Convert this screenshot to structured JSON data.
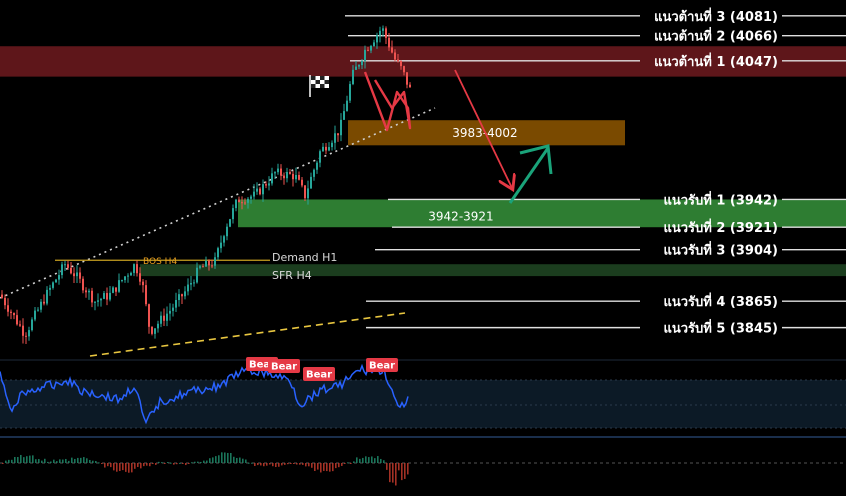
{
  "chart_data": {
    "type": "candlestick",
    "ylim": [
      3822,
      4093
    ],
    "resistance_levels": [
      {
        "label": "แนวต้านที่ 3 (4081)",
        "value": 4081
      },
      {
        "label": "แนวต้านที่ 2 (4066)",
        "value": 4066
      },
      {
        "label": "แนวต้านที่ 1 (4047)",
        "value": 4047
      }
    ],
    "support_levels": [
      {
        "label": "แนวรับที่ 1 (3942)",
        "value": 3942
      },
      {
        "label": "แนวรับที่ 2 (3921)",
        "value": 3921
      },
      {
        "label": "แนวรับที่ 3 (3904)",
        "value": 3904
      },
      {
        "label": "แนวรับที่ 4 (3865)",
        "value": 3865
      },
      {
        "label": "แนวรับที่ 5 (3845)",
        "value": 3845
      }
    ],
    "zones": [
      {
        "label": "3983-4002",
        "low": 3983,
        "high": 4002,
        "color": "#7a4a00"
      },
      {
        "label": "3942-3921",
        "low": 3921,
        "high": 3942,
        "color": "#2e7d32"
      },
      {
        "label": "",
        "low": 4035,
        "high": 4058,
        "color": "#6e1a1f"
      },
      {
        "label": "",
        "low": 3884,
        "high": 3893,
        "color": "#1b3d1e"
      }
    ],
    "annotations": {
      "demand": "Demand H1",
      "sfr": "SFR H4",
      "bos": "BOS H4",
      "bos_value": 3896
    },
    "oscillator": {
      "signal_label": "Bear",
      "signal_count": 4
    },
    "colors": {
      "up": "#26a69a",
      "down": "#ef5350",
      "arrow_down": "#e53945",
      "arrow_up": "#1aa37a",
      "oscillator_line": "#2962ff"
    }
  }
}
